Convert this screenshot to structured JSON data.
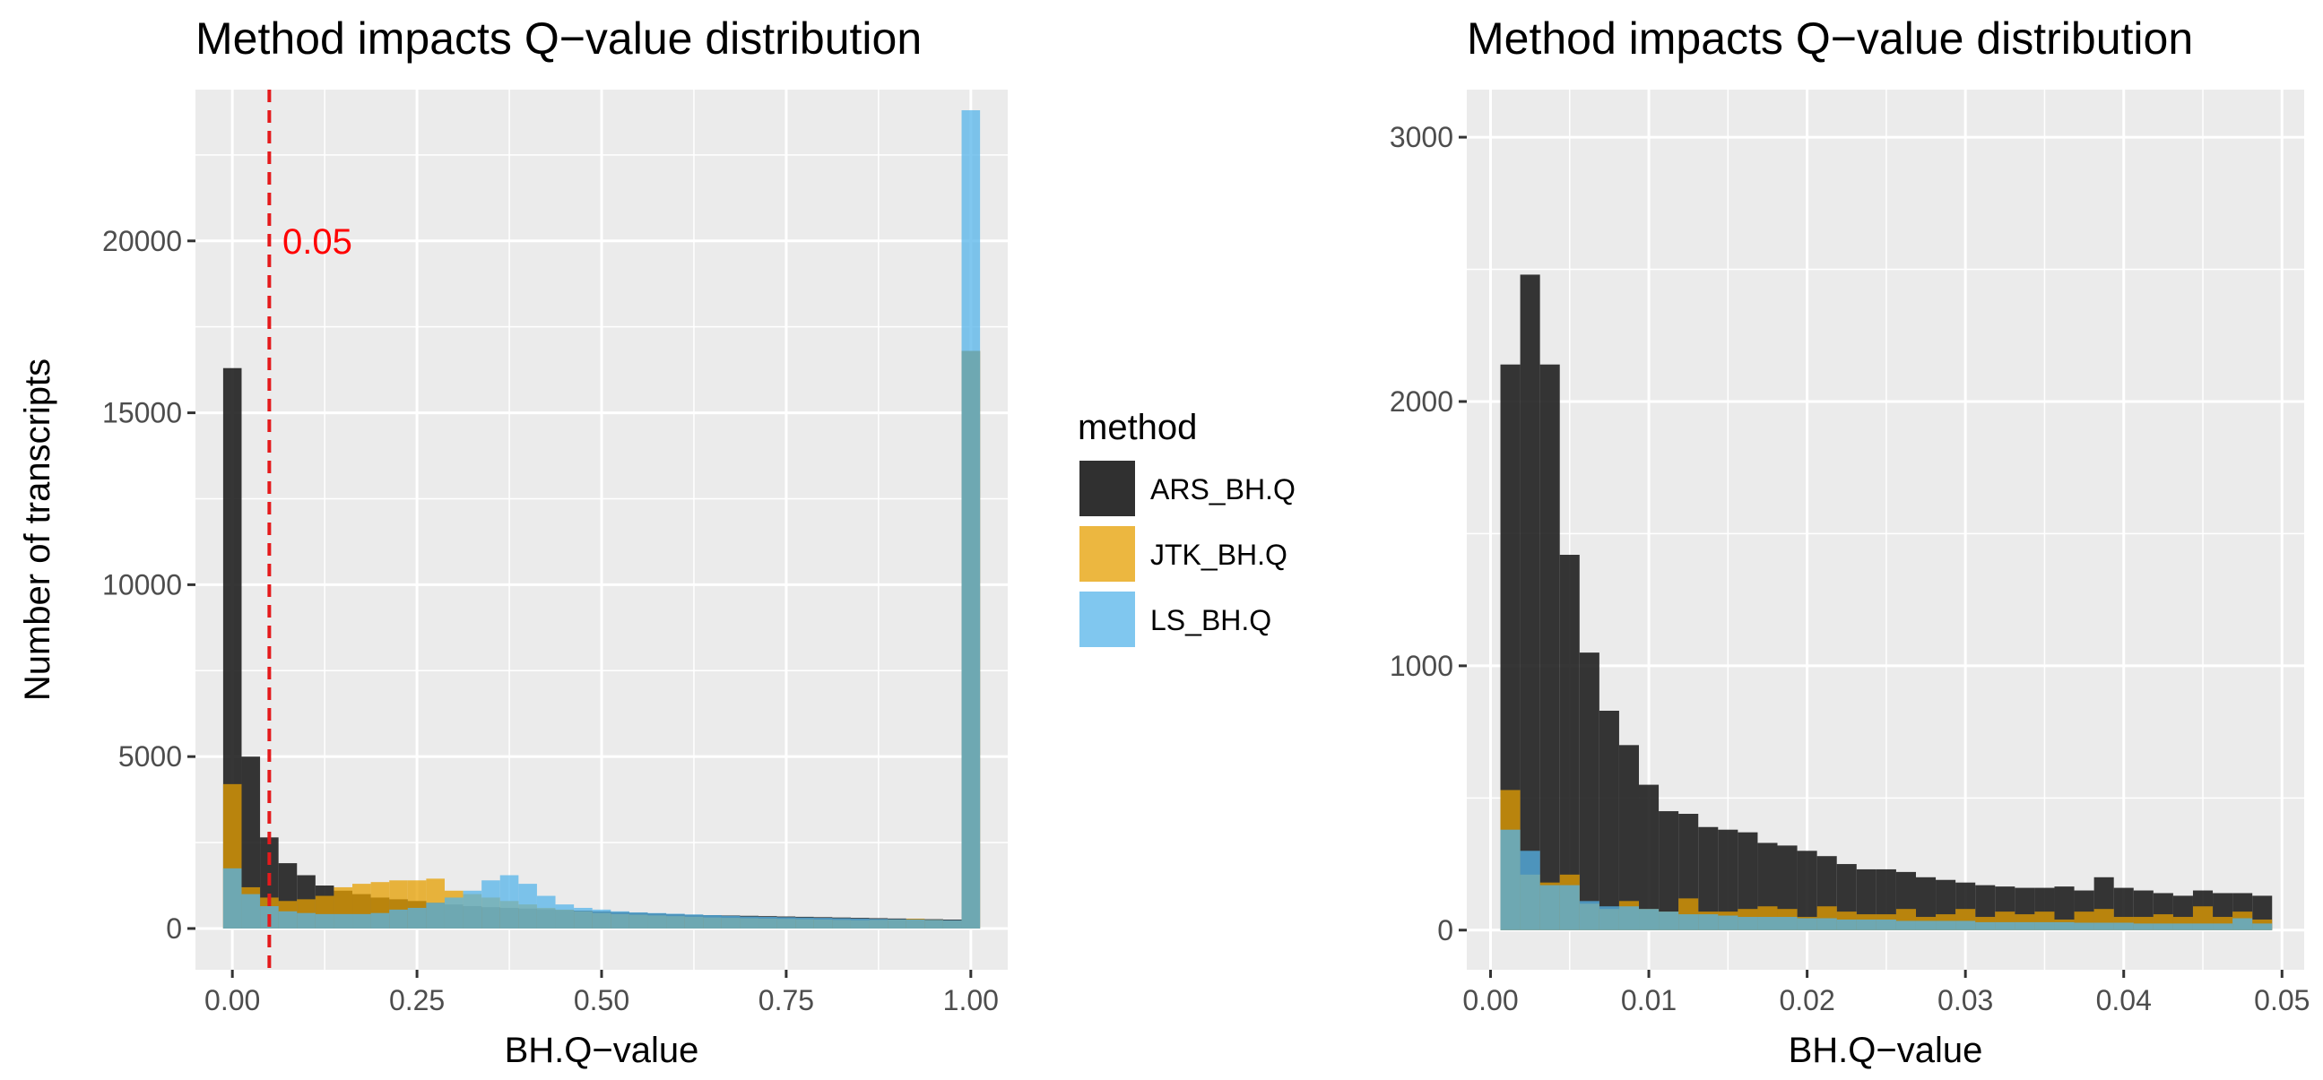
{
  "legend": {
    "title": "method",
    "items": [
      {
        "label": "ARS_BH.Q",
        "color": "#1a1a1a"
      },
      {
        "label": "JTK_BH.Q",
        "color": "#e69f00"
      },
      {
        "label": "LS_BH.Q",
        "color": "#56b4e9"
      }
    ]
  },
  "chart_data": [
    {
      "type": "bar",
      "title": "Method impacts Q−value distribution",
      "xlabel": "BH.Q−value",
      "ylabel": "Number of transcripts",
      "xlim": [
        -0.05,
        1.05
      ],
      "ylim": [
        -1200,
        24400
      ],
      "x_ticks": [
        0,
        0.25,
        0.5,
        0.75,
        1
      ],
      "x_tick_labels": [
        "0.00",
        "0.25",
        "0.50",
        "0.75",
        "1.00"
      ],
      "y_ticks": [
        0,
        5000,
        10000,
        15000,
        20000
      ],
      "y_tick_labels": [
        "0",
        "5000",
        "10000",
        "15000",
        "20000"
      ],
      "bin_width": 0.025,
      "x": [
        0,
        0.025,
        0.05,
        0.075,
        0.1,
        0.125,
        0.15,
        0.175,
        0.2,
        0.225,
        0.25,
        0.275,
        0.3,
        0.325,
        0.35,
        0.375,
        0.4,
        0.425,
        0.45,
        0.475,
        0.5,
        0.525,
        0.55,
        0.575,
        0.6,
        0.625,
        0.65,
        0.675,
        0.7,
        0.725,
        0.75,
        0.775,
        0.8,
        0.825,
        0.85,
        0.875,
        0.9,
        0.925,
        0.95,
        0.975,
        1
      ],
      "series": [
        {
          "name": "ARS_BH.Q",
          "values": [
            16300,
            5000,
            2650,
            1900,
            1550,
            1250,
            1100,
            1000,
            900,
            850,
            800,
            750,
            700,
            650,
            620,
            600,
            580,
            560,
            540,
            520,
            500,
            480,
            460,
            440,
            420,
            400,
            390,
            380,
            370,
            360,
            350,
            340,
            330,
            320,
            310,
            300,
            290,
            280,
            270,
            260,
            16800
          ]
        },
        {
          "name": "JTK_BH.Q",
          "values": [
            4200,
            1200,
            900,
            800,
            850,
            950,
            1200,
            1300,
            1350,
            1400,
            1400,
            1450,
            1100,
            1000,
            900,
            800,
            700,
            600,
            550,
            500,
            450,
            420,
            400,
            380,
            360,
            340,
            320,
            310,
            300,
            290,
            280,
            270,
            260,
            250,
            240,
            250,
            260,
            280,
            250,
            230,
            16800
          ]
        },
        {
          "name": "LS_BH.Q",
          "values": [
            1750,
            1000,
            650,
            500,
            450,
            420,
            420,
            420,
            450,
            550,
            600,
            750,
            900,
            1100,
            1400,
            1550,
            1300,
            950,
            700,
            600,
            550,
            500,
            470,
            450,
            430,
            410,
            390,
            370,
            350,
            340,
            330,
            320,
            310,
            300,
            290,
            280,
            270,
            260,
            250,
            240,
            23800
          ]
        }
      ],
      "annotations": [
        {
          "type": "vline",
          "x": 0.05,
          "color": "#e41a1c",
          "style": "dashed"
        },
        {
          "type": "text",
          "text": "0.05",
          "x": 0.115,
          "y": 20000,
          "color": "#ff0000"
        }
      ],
      "grid": true,
      "legend_placement": "right"
    },
    {
      "type": "bar",
      "title": "Method impacts Q−value distribution",
      "xlabel": "BH.Q−value",
      "ylabel": "",
      "xlim": [
        -0.0015,
        0.0514
      ],
      "ylim": [
        -150,
        3180
      ],
      "x_ticks": [
        0,
        0.01,
        0.02,
        0.03,
        0.04,
        0.05
      ],
      "x_tick_labels": [
        "0.00",
        "0.01",
        "0.02",
        "0.03",
        "0.04",
        "0.05"
      ],
      "y_ticks": [
        0,
        1000,
        2000,
        3000
      ],
      "y_tick_labels": [
        "0",
        "1000",
        "2000",
        "3000"
      ],
      "bin_width": 0.00125,
      "x": [
        0.00125,
        0.0025,
        0.00375,
        0.005,
        0.00625,
        0.0075,
        0.00875,
        0.01,
        0.01125,
        0.0125,
        0.01375,
        0.015,
        0.01625,
        0.0175,
        0.01875,
        0.02,
        0.02125,
        0.0225,
        0.02375,
        0.025,
        0.02625,
        0.0275,
        0.02875,
        0.03,
        0.03125,
        0.0325,
        0.03375,
        0.035,
        0.03625,
        0.0375,
        0.03875,
        0.04,
        0.04125,
        0.0425,
        0.04375,
        0.045,
        0.04625,
        0.0475,
        0.04875
      ],
      "series": [
        {
          "name": "ARS_BH.Q",
          "values": [
            2140,
            2480,
            2140,
            1420,
            1050,
            830,
            700,
            550,
            450,
            440,
            390,
            380,
            370,
            330,
            320,
            300,
            280,
            250,
            230,
            230,
            220,
            200,
            190,
            180,
            170,
            165,
            160,
            160,
            165,
            150,
            200,
            160,
            150,
            140,
            130,
            150,
            140,
            140,
            130
          ]
        },
        {
          "name": "JTK_BH.Q",
          "values": [
            530,
            210,
            180,
            210,
            100,
            80,
            110,
            80,
            70,
            120,
            70,
            70,
            80,
            90,
            80,
            50,
            90,
            70,
            60,
            60,
            80,
            50,
            60,
            80,
            50,
            70,
            60,
            70,
            40,
            70,
            80,
            50,
            50,
            60,
            50,
            90,
            50,
            70,
            40
          ]
        },
        {
          "name": "LS_BH.Q",
          "values": [
            380,
            300,
            170,
            170,
            110,
            90,
            90,
            80,
            70,
            60,
            60,
            55,
            50,
            50,
            50,
            45,
            45,
            40,
            40,
            40,
            35,
            35,
            35,
            35,
            30,
            30,
            30,
            30,
            30,
            28,
            28,
            28,
            25,
            25,
            25,
            25,
            25,
            45,
            25
          ]
        }
      ],
      "grid": true
    }
  ]
}
